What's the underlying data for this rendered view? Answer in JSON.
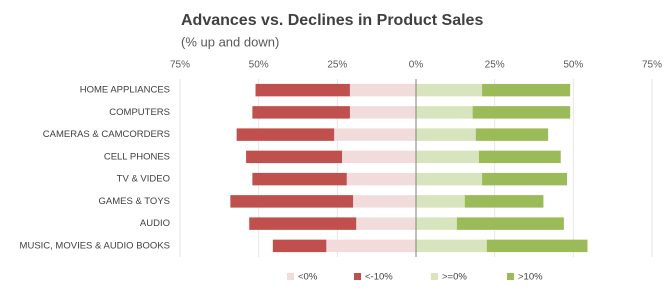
{
  "chart_data": {
    "type": "diverging-stacked-bar",
    "title": "Advances vs. Declines in Product Sales",
    "subtitle": "(% up and down)",
    "categories": [
      "HOME APPLIANCES",
      "COMPUTERS",
      "CAMERAS & CAMCORDERS",
      "CELL PHONES",
      "TV & VIDEO",
      "GAMES & TOYS",
      "AUDIO",
      "MUSIC, MOVIES & AUDIO BOOKS"
    ],
    "series": [
      {
        "name": "<0%",
        "color": "#f2dcdb",
        "values": [
          -21,
          -21,
          -26,
          -23.5,
          -22,
          -20,
          -19,
          -28.5
        ]
      },
      {
        "name": "<-10%",
        "color": "#c0504d",
        "values": [
          -30,
          -31,
          -31,
          -30.5,
          -30,
          -39,
          -34,
          -17
        ]
      },
      {
        "name": ">=0%",
        "color": "#d7e4bd",
        "values": [
          21,
          18,
          19,
          20,
          21,
          15.5,
          13,
          22.5
        ]
      },
      {
        "name": ">10%",
        "color": "#9bbb59",
        "values": [
          28,
          31,
          23,
          26,
          27,
          25,
          34,
          32
        ]
      }
    ],
    "xlim": [
      -75,
      75
    ],
    "xticks": [
      {
        "value": -75,
        "label": "75%"
      },
      {
        "value": -50,
        "label": "50%"
      },
      {
        "value": -25,
        "label": "25%"
      },
      {
        "value": 0,
        "label": "0%"
      },
      {
        "value": 25,
        "label": "25%"
      },
      {
        "value": 50,
        "label": "50%"
      },
      {
        "value": 75,
        "label": "75%"
      }
    ],
    "grid": true,
    "legend": "bottom"
  }
}
